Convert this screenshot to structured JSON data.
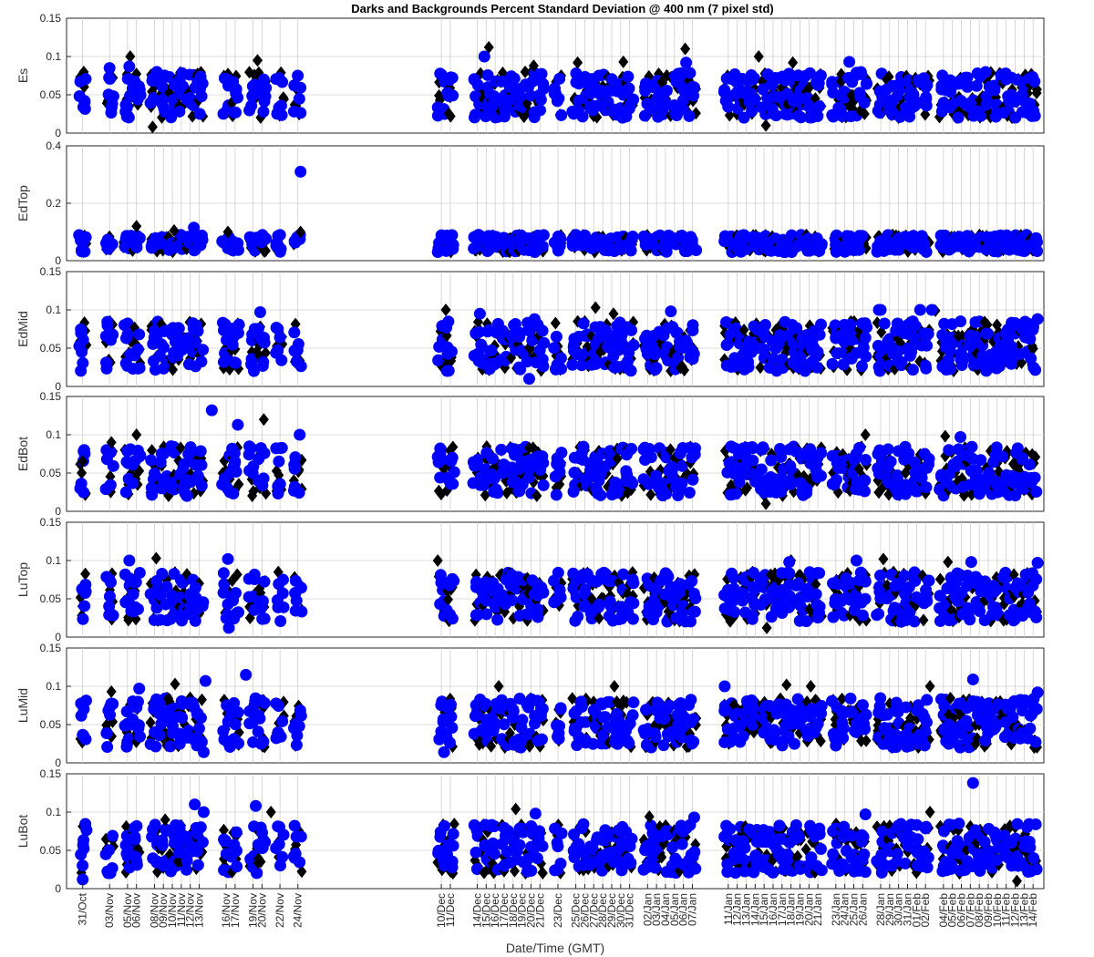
{
  "chart_data": {
    "type": "scatter",
    "title": "Darks and Backgrounds Percent Standard Deviation @ 400 nm (7 pixel std)",
    "xlabel": "Date/Time (GMT)",
    "x_tick_labels": [
      "31/Oct",
      "03/Nov",
      "05/Nov",
      "06/Nov",
      "08/Nov",
      "09/Nov",
      "10/Nov",
      "11/Nov",
      "12/Nov",
      "13/Nov",
      "16/Nov",
      "17/Nov",
      "19/Nov",
      "20/Nov",
      "22/Nov",
      "24/Nov",
      "10/Dec",
      "11/Dec",
      "14/Dec",
      "15/Dec",
      "16/Dec",
      "17/Dec",
      "18/Dec",
      "19/Dec",
      "20/Dec",
      "21/Dec",
      "23/Dec",
      "25/Dec",
      "26/Dec",
      "27/Dec",
      "28/Dec",
      "29/Dec",
      "30/Dec",
      "31/Dec",
      "02/Jan",
      "03/Jan",
      "04/Jan",
      "05/Jan",
      "06/Jan",
      "07/Jan",
      "11/Jan",
      "12/Jan",
      "13/Jan",
      "14/Jan",
      "15/Jan",
      "16/Jan",
      "17/Jan",
      "18/Jan",
      "19/Jan",
      "20/Jan",
      "21/Jan",
      "23/Jan",
      "24/Jan",
      "25/Jan",
      "26/Jan",
      "28/Jan",
      "29/Jan",
      "30/Jan",
      "31/Jan",
      "01/Feb",
      "02/Feb",
      "04/Feb",
      "05/Feb",
      "06/Feb",
      "07/Feb",
      "08/Feb",
      "09/Feb",
      "10/Feb",
      "11/Feb",
      "12/Feb",
      "13/Feb",
      "14/Feb"
    ],
    "x_tick_day": [
      0,
      3,
      5,
      6,
      8,
      9,
      10,
      11,
      12,
      13,
      16,
      17,
      19,
      20,
      22,
      24,
      40,
      41,
      44,
      45,
      46,
      47,
      48,
      49,
      50,
      51,
      53,
      55,
      56,
      57,
      58,
      59,
      60,
      61,
      63,
      64,
      65,
      66,
      67,
      68,
      72,
      73,
      74,
      75,
      76,
      77,
      78,
      79,
      80,
      81,
      82,
      84,
      85,
      86,
      87,
      89,
      90,
      91,
      92,
      93,
      94,
      96,
      97,
      98,
      99,
      100,
      101,
      102,
      103,
      104,
      105,
      106
    ],
    "x_range_days": [
      -1.8,
      107.2
    ],
    "grid": true,
    "series_style": {
      "dark": {
        "marker": "diamond",
        "color": "#000000"
      },
      "background": {
        "marker": "circle",
        "color": "#0000ff"
      }
    },
    "panels": [
      {
        "ylabel": "Es",
        "ylim": [
          0,
          0.15
        ],
        "yticks": [
          "0",
          "0.05",
          "0.1",
          "0.15"
        ],
        "typical_range": [
          0.02,
          0.08
        ],
        "dark_outliers": [
          [
            5.3,
            0.1
          ],
          [
            7.8,
            0.008
          ],
          [
            19.5,
            0.095
          ],
          [
            45.3,
            0.112
          ],
          [
            50.3,
            0.088
          ],
          [
            55.2,
            0.092
          ],
          [
            60.3,
            0.093
          ],
          [
            67.2,
            0.11
          ],
          [
            75.4,
            0.1
          ],
          [
            79.2,
            0.092
          ],
          [
            76.2,
            0.01
          ]
        ],
        "background_outliers": [
          [
            3,
            0.085
          ],
          [
            5.2,
            0.087
          ],
          [
            44.8,
            0.1
          ],
          [
            67.3,
            0.092
          ],
          [
            85.5,
            0.093
          ]
        ]
      },
      {
        "ylabel": "EdTop",
        "ylim": [
          0,
          0.4
        ],
        "yticks": [
          "0",
          "0.2",
          "0.4"
        ],
        "typical_range": [
          0.03,
          0.09
        ],
        "dark_outliers": [
          [
            6,
            0.12
          ],
          [
            10.2,
            0.105
          ],
          [
            16.2,
            0.1
          ],
          [
            24.3,
            0.1
          ]
        ],
        "background_outliers": [
          [
            24.3,
            0.31
          ],
          [
            12.4,
            0.115
          ]
        ]
      },
      {
        "ylabel": "EdMid",
        "ylim": [
          0,
          0.15
        ],
        "yticks": [
          "0",
          "0.05",
          "0.1",
          "0.15"
        ],
        "typical_range": [
          0.02,
          0.085
        ],
        "dark_outliers": [
          [
            40.5,
            0.1
          ],
          [
            57.2,
            0.103
          ],
          [
            59.2,
            0.095
          ],
          [
            95.1,
            0.099
          ]
        ],
        "background_outliers": [
          [
            19.8,
            0.097
          ],
          [
            44.3,
            0.095
          ],
          [
            50.4,
            0.088
          ],
          [
            65.6,
            0.098
          ],
          [
            89,
            0.1
          ],
          [
            93.4,
            0.1
          ],
          [
            88.8,
            0.1
          ],
          [
            94.7,
            0.1
          ],
          [
            106.5,
            0.088
          ],
          [
            49.8,
            0.01
          ]
        ]
      },
      {
        "ylabel": "EdBot",
        "ylim": [
          0,
          0.15
        ],
        "yticks": [
          "0",
          "0.05",
          "0.1",
          "0.15"
        ],
        "typical_range": [
          0.02,
          0.085
        ],
        "dark_outliers": [
          [
            0,
            0.065
          ],
          [
            3.2,
            0.09
          ],
          [
            6,
            0.1
          ],
          [
            20.2,
            0.12
          ],
          [
            76.2,
            0.01
          ],
          [
            87.3,
            0.1
          ],
          [
            96.2,
            0.098
          ]
        ],
        "background_outliers": [
          [
            14.4,
            0.132
          ],
          [
            17.3,
            0.113
          ],
          [
            24.2,
            0.1
          ],
          [
            97.9,
            0.097
          ]
        ]
      },
      {
        "ylabel": "LuTop",
        "ylim": [
          0,
          0.15
        ],
        "yticks": [
          "0",
          "0.05",
          "0.1",
          "0.15"
        ],
        "typical_range": [
          0.02,
          0.085
        ],
        "dark_outliers": [
          [
            8.2,
            0.103
          ],
          [
            39.6,
            0.1
          ],
          [
            79,
            0.1
          ],
          [
            89.3,
            0.102
          ],
          [
            76.3,
            0.012
          ],
          [
            96.5,
            0.098
          ]
        ],
        "background_outliers": [
          [
            5.2,
            0.1
          ],
          [
            16.2,
            0.102
          ],
          [
            78.8,
            0.098
          ],
          [
            86.3,
            0.1
          ],
          [
            99.1,
            0.098
          ],
          [
            106.5,
            0.097
          ],
          [
            16.3,
            0.012
          ]
        ]
      },
      {
        "ylabel": "LuMid",
        "ylim": [
          0,
          0.15
        ],
        "yticks": [
          "0",
          "0.05",
          "0.1",
          "0.15"
        ],
        "typical_range": [
          0.02,
          0.085
        ],
        "dark_outliers": [
          [
            3.2,
            0.093
          ],
          [
            10.3,
            0.103
          ],
          [
            46.4,
            0.1
          ],
          [
            59.3,
            0.1
          ],
          [
            78.5,
            0.102
          ],
          [
            81.2,
            0.1
          ],
          [
            94.5,
            0.1
          ]
        ],
        "background_outliers": [
          [
            6.3,
            0.097
          ],
          [
            13.7,
            0.107
          ],
          [
            18.2,
            0.115
          ],
          [
            71.6,
            0.1
          ],
          [
            99.3,
            0.109
          ],
          [
            106.5,
            0.092
          ],
          [
            13.5,
            0.014
          ],
          [
            40.3,
            0.014
          ]
        ]
      },
      {
        "ylabel": "LuBot",
        "ylim": [
          0,
          0.15
        ],
        "yticks": [
          "0",
          "0.05",
          "0.1",
          "0.15"
        ],
        "typical_range": [
          0.02,
          0.085
        ],
        "dark_outliers": [
          [
            9.2,
            0.09
          ],
          [
            21,
            0.1
          ],
          [
            48.3,
            0.104
          ],
          [
            63.2,
            0.094
          ],
          [
            94.5,
            0.1
          ],
          [
            104.2,
            0.01
          ]
        ],
        "background_outliers": [
          [
            12.5,
            0.11
          ],
          [
            13.5,
            0.1
          ],
          [
            19.3,
            0.108
          ],
          [
            50.5,
            0.098
          ],
          [
            68.2,
            0.093
          ],
          [
            87.3,
            0.097
          ],
          [
            99.3,
            0.138
          ],
          [
            0,
            0.012
          ]
        ]
      }
    ]
  }
}
